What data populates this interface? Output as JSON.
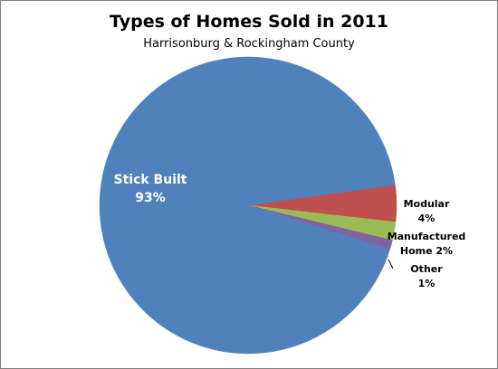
{
  "chart_data": {
    "type": "pie",
    "title": "Types of Homes Sold in 2011",
    "subtitle": "Harrisonburg & Rockingham County",
    "slices": [
      {
        "name": "Stick Built",
        "value": 93,
        "label_lines": [
          "Stick Built",
          "93%"
        ],
        "color": "#4F81BD"
      },
      {
        "name": "Modular",
        "value": 4,
        "label_lines": [
          "Modular",
          "4%"
        ],
        "color": "#C0504D"
      },
      {
        "name": "Manufactured Home",
        "value": 2,
        "label_lines": [
          "Manufactured",
          "Home  2%"
        ],
        "color": "#9BBB59"
      },
      {
        "name": "Other",
        "value": 1,
        "label_lines": [
          "Other",
          "1%"
        ],
        "color": "#8064A2"
      }
    ],
    "legend": "none",
    "grid": false
  }
}
